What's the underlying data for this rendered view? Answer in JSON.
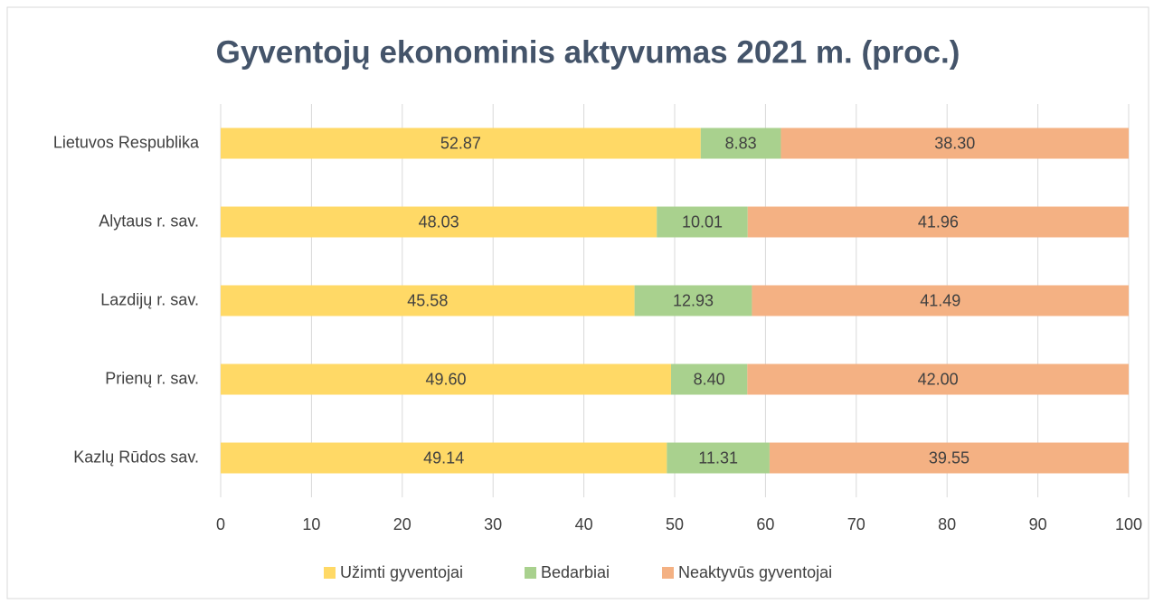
{
  "chart_data": {
    "type": "stacked_barh",
    "title": "Gyventojų ekonominis aktyvumas 2021 m. (proc.)",
    "categories": [
      "Lietuvos Respublika",
      "Alytaus r. sav.",
      "Lazdijų r. sav.",
      "Prienų r. sav.",
      "Kazlų Rūdos sav."
    ],
    "series": [
      {
        "name": "Užimti gyventojai",
        "color": "#ffd966",
        "values": [
          52.87,
          48.03,
          45.58,
          49.6,
          49.14
        ],
        "value_labels": [
          "52.87",
          "48.03",
          "45.58",
          "49.60",
          "49.14"
        ]
      },
      {
        "name": "Bedarbiai",
        "color": "#a9d18e",
        "values": [
          8.83,
          10.01,
          12.93,
          8.4,
          11.31
        ],
        "value_labels": [
          "8.83",
          "10.01",
          "12.93",
          "8.40",
          "11.31"
        ]
      },
      {
        "name": "Neaktyvūs gyventojai",
        "color": "#f4b183",
        "values": [
          38.3,
          41.96,
          41.49,
          42.0,
          39.55
        ],
        "value_labels": [
          "38.30",
          "41.96",
          "41.49",
          "42.00",
          "39.55"
        ]
      }
    ],
    "xlim": [
      0,
      100
    ],
    "xticks": [
      0,
      10,
      20,
      30,
      40,
      50,
      60,
      70,
      80,
      90,
      100
    ],
    "grid": true,
    "legend": "bottom"
  }
}
